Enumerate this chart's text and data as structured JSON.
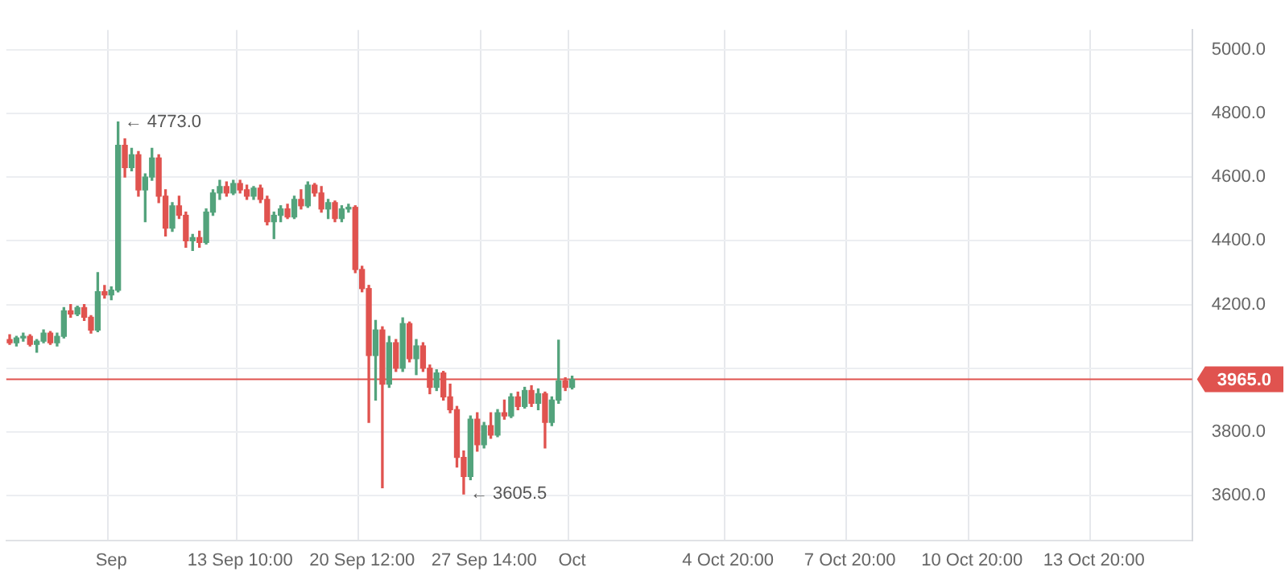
{
  "chart_data": {
    "type": "candlestick",
    "categories": [
      null,
      null,
      null,
      null,
      null,
      null,
      null,
      null,
      null,
      null,
      null,
      null,
      null,
      null,
      null,
      "Sep",
      null,
      null,
      null,
      null,
      null,
      null,
      null,
      null,
      null,
      null,
      null,
      null,
      null,
      null,
      null,
      null,
      null,
      null,
      "13 Sep 10:00",
      null,
      null,
      null,
      null,
      null,
      null,
      null,
      null,
      null,
      null,
      null,
      null,
      null,
      null,
      null,
      null,
      null,
      "20 Sep 12:00",
      null,
      null,
      null,
      null,
      null,
      null,
      null,
      null,
      null,
      null,
      null,
      null,
      null,
      null,
      null,
      null,
      null,
      "27 Sep 14:00",
      null,
      null,
      null,
      null,
      null,
      null,
      null,
      null,
      null,
      null,
      null,
      null,
      "Oct",
      null,
      null,
      null,
      null,
      null,
      null,
      null,
      null,
      null,
      null,
      null,
      null,
      null,
      null,
      null,
      null,
      null,
      null,
      null,
      null,
      null,
      null,
      "4 Oct 20:00",
      null,
      null,
      null,
      null,
      null,
      null,
      null,
      null,
      null,
      null,
      null,
      null,
      null,
      null,
      null,
      null,
      null,
      "7 Oct 20:00",
      null,
      null,
      null,
      null,
      null,
      null,
      null,
      null,
      null,
      null,
      null,
      null,
      null,
      null,
      null,
      null,
      null,
      "10 Oct 20:00",
      null,
      null,
      null,
      null,
      null,
      null,
      null,
      null,
      null,
      null,
      null,
      null,
      null,
      null,
      null,
      null,
      null,
      "13 Oct 20:00",
      null,
      null,
      null,
      null,
      null,
      null,
      null,
      null,
      null,
      null,
      null,
      null,
      null,
      null
    ],
    "ohlc": [
      [
        4090,
        4105,
        4075,
        4080
      ],
      [
        4080,
        4100,
        4070,
        4095
      ],
      [
        4095,
        4110,
        4085,
        4100
      ],
      [
        4100,
        4105,
        4070,
        4075
      ],
      [
        4075,
        4090,
        4050,
        4085
      ],
      [
        4085,
        4120,
        4080,
        4110
      ],
      [
        4110,
        4115,
        4075,
        4080
      ],
      [
        4080,
        4110,
        4070,
        4100
      ],
      [
        4100,
        4190,
        4095,
        4180
      ],
      [
        4180,
        4200,
        4160,
        4170
      ],
      [
        4170,
        4195,
        4165,
        4190
      ],
      [
        4190,
        4200,
        4150,
        4160
      ],
      [
        4160,
        4165,
        4110,
        4120
      ],
      [
        4120,
        4300,
        4115,
        4240
      ],
      [
        4240,
        4260,
        4220,
        4230
      ],
      [
        4230,
        4255,
        4215,
        4245
      ],
      [
        4245,
        4773,
        4240,
        4700
      ],
      [
        4700,
        4720,
        4600,
        4630
      ],
      [
        4630,
        4690,
        4620,
        4670
      ],
      [
        4670,
        4680,
        4540,
        4560
      ],
      [
        4560,
        4610,
        4460,
        4600
      ],
      [
        4600,
        4690,
        4590,
        4660
      ],
      [
        4660,
        4670,
        4520,
        4540
      ],
      [
        4540,
        4560,
        4415,
        4440
      ],
      [
        4440,
        4520,
        4430,
        4510
      ],
      [
        4510,
        4540,
        4470,
        4480
      ],
      [
        4480,
        4490,
        4380,
        4400
      ],
      [
        4400,
        4420,
        4370,
        4410
      ],
      [
        4410,
        4430,
        4380,
        4395
      ],
      [
        4395,
        4500,
        4390,
        4490
      ],
      [
        4490,
        4560,
        4480,
        4550
      ],
      [
        4550,
        4590,
        4530,
        4570
      ],
      [
        4570,
        4585,
        4540,
        4550
      ],
      [
        4550,
        4590,
        4545,
        4580
      ],
      [
        4580,
        4590,
        4550,
        4560
      ],
      [
        4560,
        4575,
        4530,
        4540
      ],
      [
        4540,
        4570,
        4530,
        4565
      ],
      [
        4565,
        4575,
        4520,
        4530
      ],
      [
        4530,
        4540,
        4450,
        4460
      ],
      [
        4460,
        4490,
        4407,
        4480
      ],
      [
        4480,
        4510,
        4460,
        4500
      ],
      [
        4500,
        4515,
        4470,
        4475
      ],
      [
        4475,
        4540,
        4470,
        4530
      ],
      [
        4530,
        4560,
        4500,
        4510
      ],
      [
        4510,
        4585,
        4505,
        4575
      ],
      [
        4575,
        4580,
        4540,
        4550
      ],
      [
        4550,
        4570,
        4490,
        4500
      ],
      [
        4500,
        4530,
        4470,
        4520
      ],
      [
        4520,
        4525,
        4460,
        4470
      ],
      [
        4470,
        4510,
        4460,
        4500
      ],
      [
        4500,
        4515,
        4490,
        4505
      ],
      [
        4505,
        4510,
        4300,
        4310
      ],
      [
        4310,
        4320,
        4240,
        4250
      ],
      [
        4250,
        4260,
        3830,
        4040
      ],
      [
        4040,
        4150,
        3900,
        4120
      ],
      [
        4120,
        4130,
        3625,
        3950
      ],
      [
        3950,
        4100,
        3940,
        4080
      ],
      [
        4080,
        4090,
        3990,
        4000
      ],
      [
        4000,
        4158,
        3990,
        4140
      ],
      [
        4140,
        4145,
        4020,
        4030
      ],
      [
        4030,
        4090,
        3980,
        4070
      ],
      [
        4070,
        4080,
        3990,
        4000
      ],
      [
        4000,
        4010,
        3920,
        3940
      ],
      [
        3940,
        3995,
        3930,
        3985
      ],
      [
        3985,
        3990,
        3900,
        3910
      ],
      [
        3910,
        3950,
        3860,
        3870
      ],
      [
        3870,
        3880,
        3690,
        3720
      ],
      [
        3720,
        3740,
        3605.5,
        3660
      ],
      [
        3660,
        3850,
        3650,
        3840
      ],
      [
        3840,
        3860,
        3740,
        3760
      ],
      [
        3760,
        3830,
        3750,
        3820
      ],
      [
        3820,
        3860,
        3780,
        3790
      ],
      [
        3790,
        3870,
        3785,
        3860
      ],
      [
        3860,
        3900,
        3840,
        3850
      ],
      [
        3850,
        3920,
        3845,
        3910
      ],
      [
        3910,
        3925,
        3870,
        3880
      ],
      [
        3880,
        3940,
        3875,
        3930
      ],
      [
        3930,
        3945,
        3880,
        3890
      ],
      [
        3890,
        3935,
        3870,
        3920
      ],
      [
        3920,
        3925,
        3750,
        3830
      ],
      [
        3830,
        3910,
        3820,
        3900
      ],
      [
        3900,
        4088,
        3890,
        3960
      ],
      [
        3960,
        3970,
        3930,
        3940
      ],
      [
        3940,
        3975,
        3935,
        3965
      ],
      null,
      null,
      null,
      null,
      null,
      null,
      null,
      null,
      null,
      null,
      null,
      null,
      null,
      null,
      null,
      null,
      null,
      null,
      null,
      null,
      null,
      null,
      null,
      null,
      null,
      null,
      null,
      null,
      null,
      null,
      null,
      null,
      null,
      null,
      null,
      null,
      null,
      null,
      null,
      null,
      null,
      null,
      null,
      null,
      null,
      null,
      null,
      null,
      null,
      null,
      null,
      null,
      null,
      null,
      null,
      null,
      null,
      null,
      null,
      null,
      null,
      null,
      null,
      null,
      null,
      null,
      null,
      null,
      null,
      null,
      null,
      null,
      null,
      null,
      null,
      null,
      null,
      null,
      null,
      null,
      null,
      null,
      null,
      null,
      null,
      null,
      null,
      null,
      null,
      null,
      null
    ],
    "colors": [
      "#e0534f",
      "#53a37c",
      "#53a37c",
      "#e0534f",
      "#53a37c",
      "#53a37c",
      "#e0534f",
      "#53a37c",
      "#53a37c",
      "#e0534f",
      "#53a37c",
      "#e0534f",
      "#e0534f",
      "#53a37c",
      "#e0534f",
      "#53a37c",
      "#53a37c",
      "#e0534f",
      "#53a37c",
      "#e0534f",
      "#53a37c",
      "#53a37c",
      "#e0534f",
      "#e0534f",
      "#53a37c",
      "#e0534f",
      "#e0534f",
      "#53a37c",
      "#e0534f",
      "#53a37c",
      "#53a37c",
      "#53a37c",
      "#e0534f",
      "#53a37c",
      "#e0534f",
      "#e0534f",
      "#53a37c",
      "#e0534f",
      "#e0534f",
      "#53a37c",
      "#53a37c",
      "#e0534f",
      "#53a37c",
      "#e0534f",
      "#53a37c",
      "#e0534f",
      "#e0534f",
      "#53a37c",
      "#e0534f",
      "#53a37c",
      "#53a37c",
      "#e0534f",
      "#e0534f",
      "#e0534f",
      "#53a37c",
      "#e0534f",
      "#53a37c",
      "#e0534f",
      "#53a37c",
      "#e0534f",
      "#53a37c",
      "#e0534f",
      "#e0534f",
      "#53a37c",
      "#e0534f",
      "#e0534f",
      "#e0534f",
      "#e0534f",
      "#53a37c",
      "#e0534f",
      "#53a37c",
      "#e0534f",
      "#53a37c",
      "#e0534f",
      "#53a37c",
      "#e0534f",
      "#53a37c",
      "#e0534f",
      "#53a37c",
      "#e0534f",
      "#53a37c",
      "#53a37c",
      "#e0534f",
      "#53a37c",
      null,
      null,
      null,
      null,
      null,
      null,
      null,
      null,
      null,
      null,
      null,
      null,
      null,
      null,
      null,
      null,
      null,
      null,
      null,
      null,
      null,
      null,
      null,
      null,
      null,
      null,
      null,
      null,
      null,
      null,
      null,
      null,
      null,
      null,
      null,
      null,
      null,
      null,
      null,
      null,
      null,
      null,
      null,
      null,
      null,
      null,
      null,
      null,
      null,
      null,
      null,
      null,
      null,
      null,
      null,
      null,
      null,
      null,
      null,
      null,
      null,
      null,
      null,
      null,
      null,
      null,
      null,
      null,
      null,
      null,
      null,
      null,
      null,
      null,
      null,
      null,
      null,
      null,
      null,
      null,
      null,
      null,
      null,
      null,
      null,
      null,
      null,
      null,
      null,
      null,
      null
    ],
    "ylim": [
      3460,
      5062
    ],
    "yticks": [
      {
        "value": 3600,
        "label": "3600.0"
      },
      {
        "value": 3800,
        "label": "3800.0"
      },
      {
        "value": 4000,
        "label": null
      },
      {
        "value": 4200,
        "label": "4200.0"
      },
      {
        "value": 4400,
        "label": "4400.0"
      },
      {
        "value": 4600,
        "label": "4600.0"
      },
      {
        "value": 4800,
        "label": "4800.0"
      },
      {
        "value": 5000,
        "label": "5000.0"
      }
    ],
    "ref_lines": [
      {
        "axis": "y",
        "value": 3965,
        "label": "3965.0",
        "color": "#e0534f"
      }
    ],
    "annotations": [
      "← 4773.0",
      "← 3605.5"
    ],
    "grid": true,
    "legend": false
  }
}
